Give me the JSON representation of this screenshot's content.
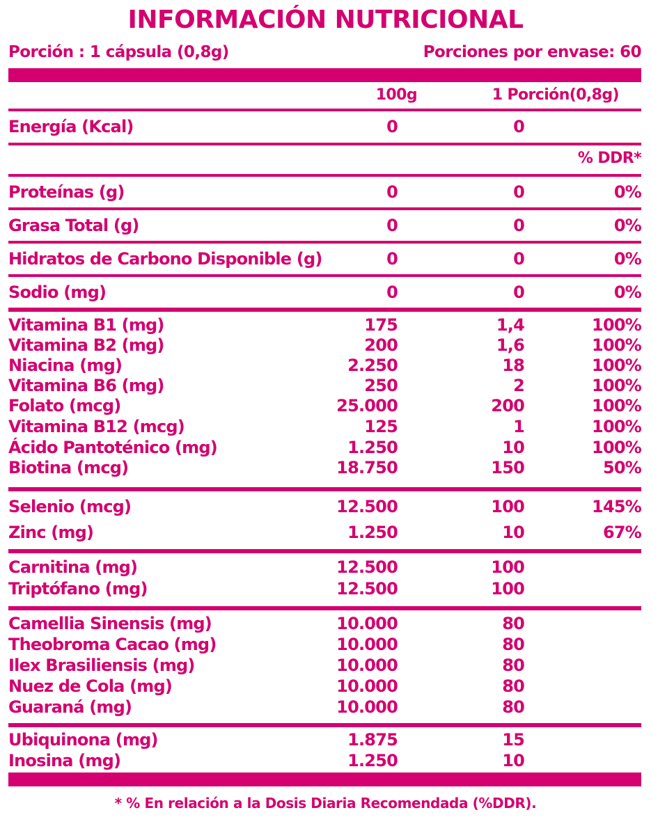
{
  "title": "INFORMACIÓN NUTRICIONAL",
  "serving": {
    "portion": "Porción : 1 cápsula (0,8g)",
    "per_container": "Porciones por envase: 60"
  },
  "columns": {
    "per100": "100g",
    "per_portion": "1 Porción(0,8g)",
    "ddr": "% DDR*"
  },
  "energy": {
    "label": "Energía (Kcal)",
    "v100": "0",
    "vpor": "0"
  },
  "macros": [
    {
      "label": "Proteínas (g)",
      "v100": "0",
      "vpor": "0",
      "ddr": "0%"
    },
    {
      "label": "Grasa Total (g)",
      "v100": "0",
      "vpor": "0",
      "ddr": "0%"
    },
    {
      "label": "Hidratos de Carbono Disponible (g)",
      "v100": "0",
      "vpor": "0",
      "ddr": "0%"
    },
    {
      "label": "Sodio (mg)",
      "v100": "0",
      "vpor": "0",
      "ddr": "0%"
    }
  ],
  "vitamins": [
    {
      "label": "Vitamina B1 (mg)",
      "v100": "175",
      "vpor": "1,4",
      "ddr": "100%"
    },
    {
      "label": "Vitamina B2 (mg)",
      "v100": "200",
      "vpor": "1,6",
      "ddr": "100%"
    },
    {
      "label": "Niacina (mg)",
      "v100": "2.250",
      "vpor": "18",
      "ddr": "100%"
    },
    {
      "label": "Vitamina B6 (mg)",
      "v100": "250",
      "vpor": "2",
      "ddr": "100%"
    },
    {
      "label": "Folato (mcg)",
      "v100": "25.000",
      "vpor": "200",
      "ddr": "100%"
    },
    {
      "label": "Vitamina B12 (mcg)",
      "v100": "125",
      "vpor": "1",
      "ddr": "100%"
    },
    {
      "label": "Ácido Pantoténico (mg)",
      "v100": "1.250",
      "vpor": "10",
      "ddr": "100%"
    },
    {
      "label": "Biotina (mcg)",
      "v100": "18.750",
      "vpor": "150",
      "ddr": "50%"
    }
  ],
  "minerals": [
    {
      "label": "Selenio (mcg)",
      "v100": "12.500",
      "vpor": "100",
      "ddr": "145%"
    },
    {
      "label": "Zinc (mg)",
      "v100": "1.250",
      "vpor": "10",
      "ddr": "67%"
    }
  ],
  "amino": [
    {
      "label": "Carnitina (mg)",
      "v100": "12.500",
      "vpor": "100"
    },
    {
      "label": "Triptófano (mg)",
      "v100": "12.500",
      "vpor": "100"
    }
  ],
  "herbals": [
    {
      "label": "Camellia Sinensis (mg)",
      "v100": "10.000",
      "vpor": "80"
    },
    {
      "label": "Theobroma Cacao (mg)",
      "v100": "10.000",
      "vpor": "80"
    },
    {
      "label": "Ilex Brasiliensis (mg)",
      "v100": "10.000",
      "vpor": "80"
    },
    {
      "label": "Nuez de Cola (mg)",
      "v100": "10.000",
      "vpor": "80"
    },
    {
      "label": "Guaraná (mg)",
      "v100": "10.000",
      "vpor": "80"
    }
  ],
  "others": [
    {
      "label": "Ubiquinona (mg)",
      "v100": "1.875",
      "vpor": "15"
    },
    {
      "label": "Inosina (mg)",
      "v100": "1.250",
      "vpor": "10"
    }
  ],
  "footnote": "* % En relación a la Dosis Diaria Recomendada (%DDR).",
  "colors": {
    "accent": "#d4006f",
    "background": "#ffffff"
  }
}
